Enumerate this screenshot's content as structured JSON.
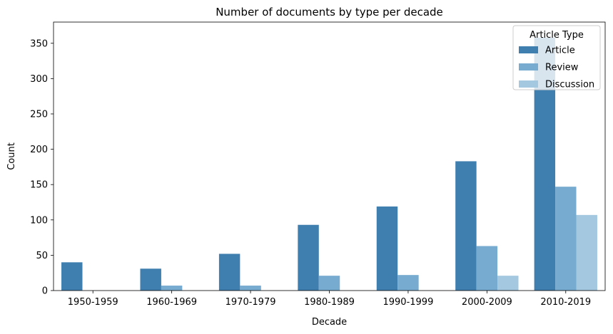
{
  "chart_data": {
    "type": "bar",
    "title": "Number of documents by type per decade",
    "xlabel": "Decade",
    "ylabel": "Count",
    "categories": [
      "1950-1959",
      "1960-1969",
      "1970-1979",
      "1980-1989",
      "1990-1999",
      "2000-2009",
      "2010-2019"
    ],
    "ylim": [
      0,
      380
    ],
    "yticks": [
      0,
      50,
      100,
      150,
      200,
      250,
      300,
      350
    ],
    "grid": false,
    "legend": {
      "title": "Article Type",
      "placement": "top-right"
    },
    "series": [
      {
        "name": "Article",
        "color": "#3f7fb0",
        "values": [
          40,
          31,
          52,
          93,
          119,
          183,
          358
        ]
      },
      {
        "name": "Review",
        "color": "#77abcf",
        "values": [
          0,
          7,
          7,
          21,
          22,
          63,
          147
        ]
      },
      {
        "name": "Discussion",
        "color": "#a3c8e0",
        "values": [
          0,
          0,
          0,
          0,
          0,
          21,
          107
        ]
      }
    ]
  }
}
